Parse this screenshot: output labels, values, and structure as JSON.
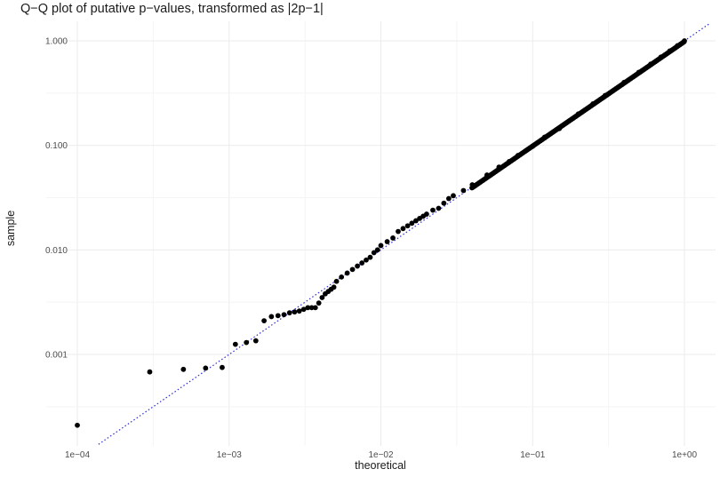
{
  "chart_data": {
    "type": "scatter",
    "title": "Q−Q plot of putative p−values, transformed as |2p−1|",
    "xlabel": "theoretical",
    "ylabel": "sample",
    "x_scale": "log10",
    "y_scale": "log10",
    "xlim": [
      7e-05,
      1.5
    ],
    "ylim": [
      0.00013,
      1.6
    ],
    "x_ticks": [
      0.0001,
      0.001,
      0.01,
      0.1,
      1
    ],
    "x_tick_labels": [
      "1e−04",
      "1e−03",
      "1e−02",
      "1e−01",
      "1e+00"
    ],
    "y_ticks": [
      0.001,
      0.01,
      0.1,
      1
    ],
    "y_tick_labels": [
      "0.001",
      "0.010",
      "0.100",
      "1.000"
    ],
    "grid": true,
    "reference_line": {
      "style": "dotted",
      "color": "#2b2bd6",
      "slope": 1,
      "intercept": 0
    },
    "point_color": "#000000",
    "background": "#ffffff",
    "grid_color": "#ebebeb",
    "series": [
      {
        "x": [
          0.0001,
          0.0003,
          0.0005,
          0.0007,
          0.0009,
          0.0011,
          0.0013,
          0.0015,
          0.0017,
          0.0019,
          0.0021,
          0.0023,
          0.0025,
          0.0027,
          0.0029,
          0.0031,
          0.0033,
          0.0035,
          0.0037,
          0.0039,
          0.0041,
          0.0043,
          0.0045,
          0.0047,
          0.0049,
          0.0051,
          0.0055,
          0.006,
          0.0065,
          0.007,
          0.0075,
          0.008,
          0.0085,
          0.009,
          0.0095,
          0.01,
          0.011,
          0.012,
          0.013,
          0.014,
          0.015,
          0.016,
          0.017,
          0.018,
          0.019,
          0.02,
          0.022,
          0.024,
          0.026,
          0.028,
          0.03,
          0.035,
          0.04,
          0.05,
          0.06,
          0.07,
          0.08,
          0.1,
          0.12,
          0.15,
          0.2,
          0.25,
          0.3,
          0.4,
          0.5,
          0.6,
          0.7,
          0.8,
          0.9,
          1.0
        ],
        "y": [
          0.00021,
          0.00068,
          0.00072,
          0.00074,
          0.00075,
          0.00125,
          0.0013,
          0.00135,
          0.0021,
          0.0023,
          0.00235,
          0.0024,
          0.0025,
          0.00255,
          0.0026,
          0.0027,
          0.0028,
          0.0028,
          0.0028,
          0.0031,
          0.0035,
          0.0038,
          0.004,
          0.0042,
          0.0044,
          0.005,
          0.0055,
          0.006,
          0.0065,
          0.007,
          0.0075,
          0.008,
          0.0085,
          0.0094,
          0.01,
          0.011,
          0.012,
          0.013,
          0.015,
          0.016,
          0.017,
          0.018,
          0.019,
          0.02,
          0.021,
          0.022,
          0.024,
          0.025,
          0.028,
          0.031,
          0.033,
          0.037,
          0.042,
          0.052,
          0.062,
          0.07,
          0.08,
          0.098,
          0.12,
          0.145,
          0.2,
          0.25,
          0.3,
          0.4,
          0.5,
          0.6,
          0.7,
          0.8,
          0.9,
          1.0
        ]
      }
    ]
  }
}
